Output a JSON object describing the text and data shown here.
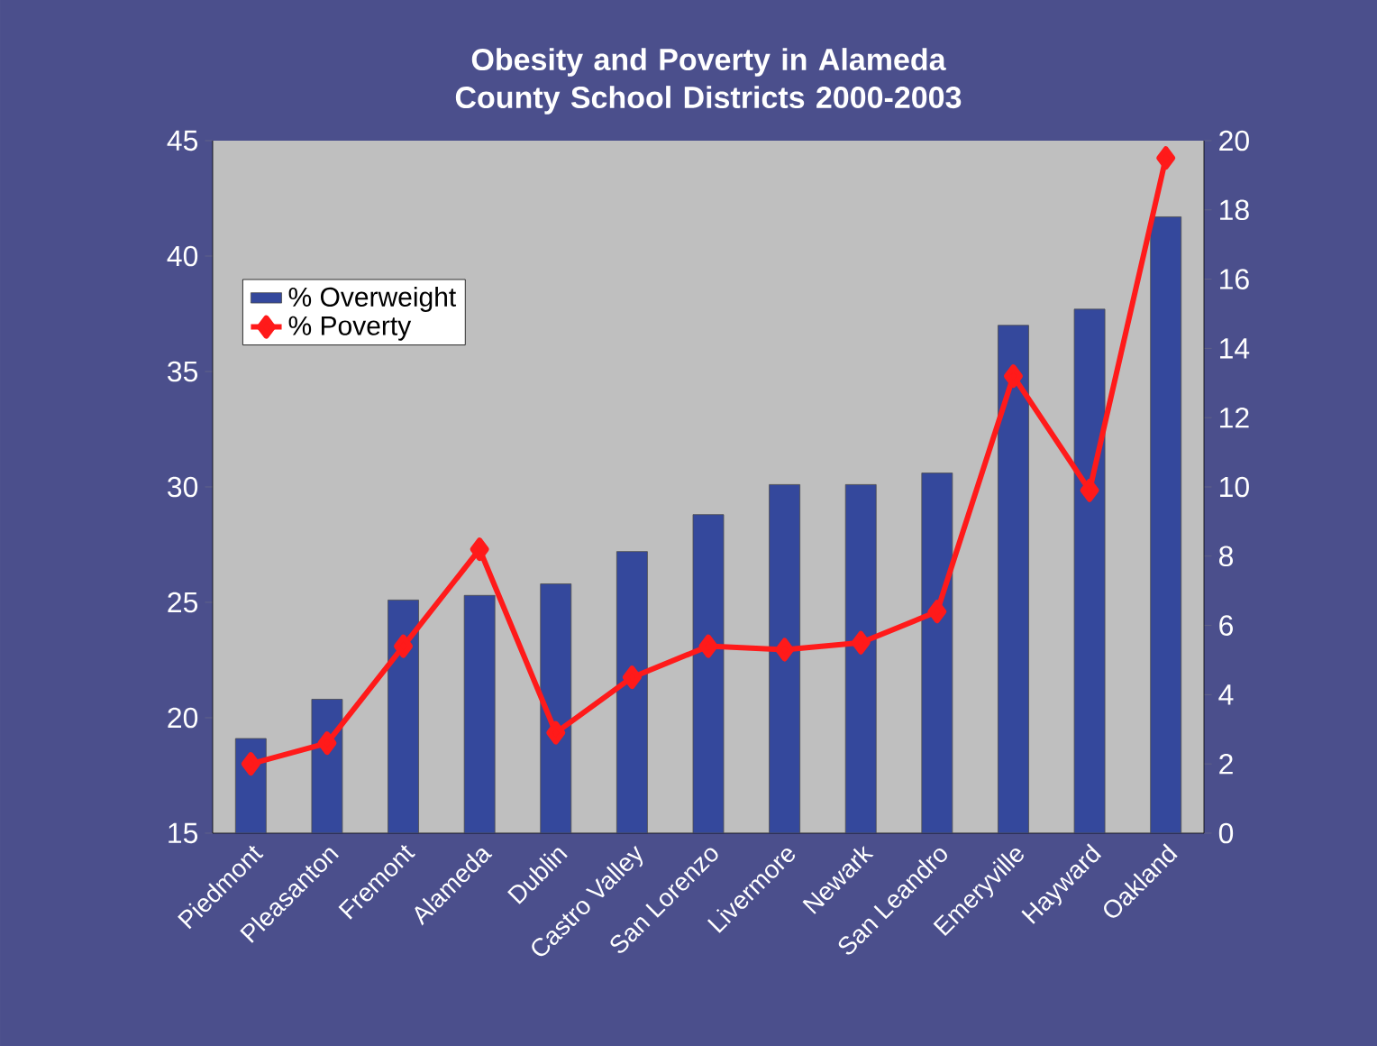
{
  "chart_data": {
    "type": "bar",
    "title": "Obesity and Poverty in Alameda County School Districts 2000-2003",
    "categories": [
      "Piedmont",
      "Pleasanton",
      "Fremont",
      "Alameda",
      "Dublin",
      "Castro Valley",
      "San Lorenzo",
      "Livermore",
      "Newark",
      "San Leandro",
      "Emeryville",
      "Hayward",
      "Oakland"
    ],
    "series": [
      {
        "name": "% Overweight",
        "color": "#34489c",
        "values": [
          19.1,
          20.8,
          25.1,
          25.3,
          25.8,
          27.2,
          28.8,
          30.1,
          30.1,
          30.6,
          37.0,
          37.7,
          41.7
        ]
      },
      {
        "name": "% Poverty",
        "type": "line",
        "axis": "y2",
        "color": "#ff1a1a",
        "marker": "diamond",
        "values": [
          2.0,
          2.6,
          5.4,
          8.2,
          2.9,
          4.5,
          5.4,
          5.3,
          5.5,
          6.4,
          13.2,
          9.9,
          19.5
        ]
      }
    ],
    "ylim": [
      15,
      45
    ],
    "yticks": [
      15,
      20,
      25,
      30,
      35,
      40,
      45
    ],
    "y2lim": [
      0,
      20
    ],
    "y2ticks": [
      0,
      2,
      4,
      6,
      8,
      10,
      12,
      14,
      16,
      18,
      20
    ],
    "legend": "top left"
  }
}
